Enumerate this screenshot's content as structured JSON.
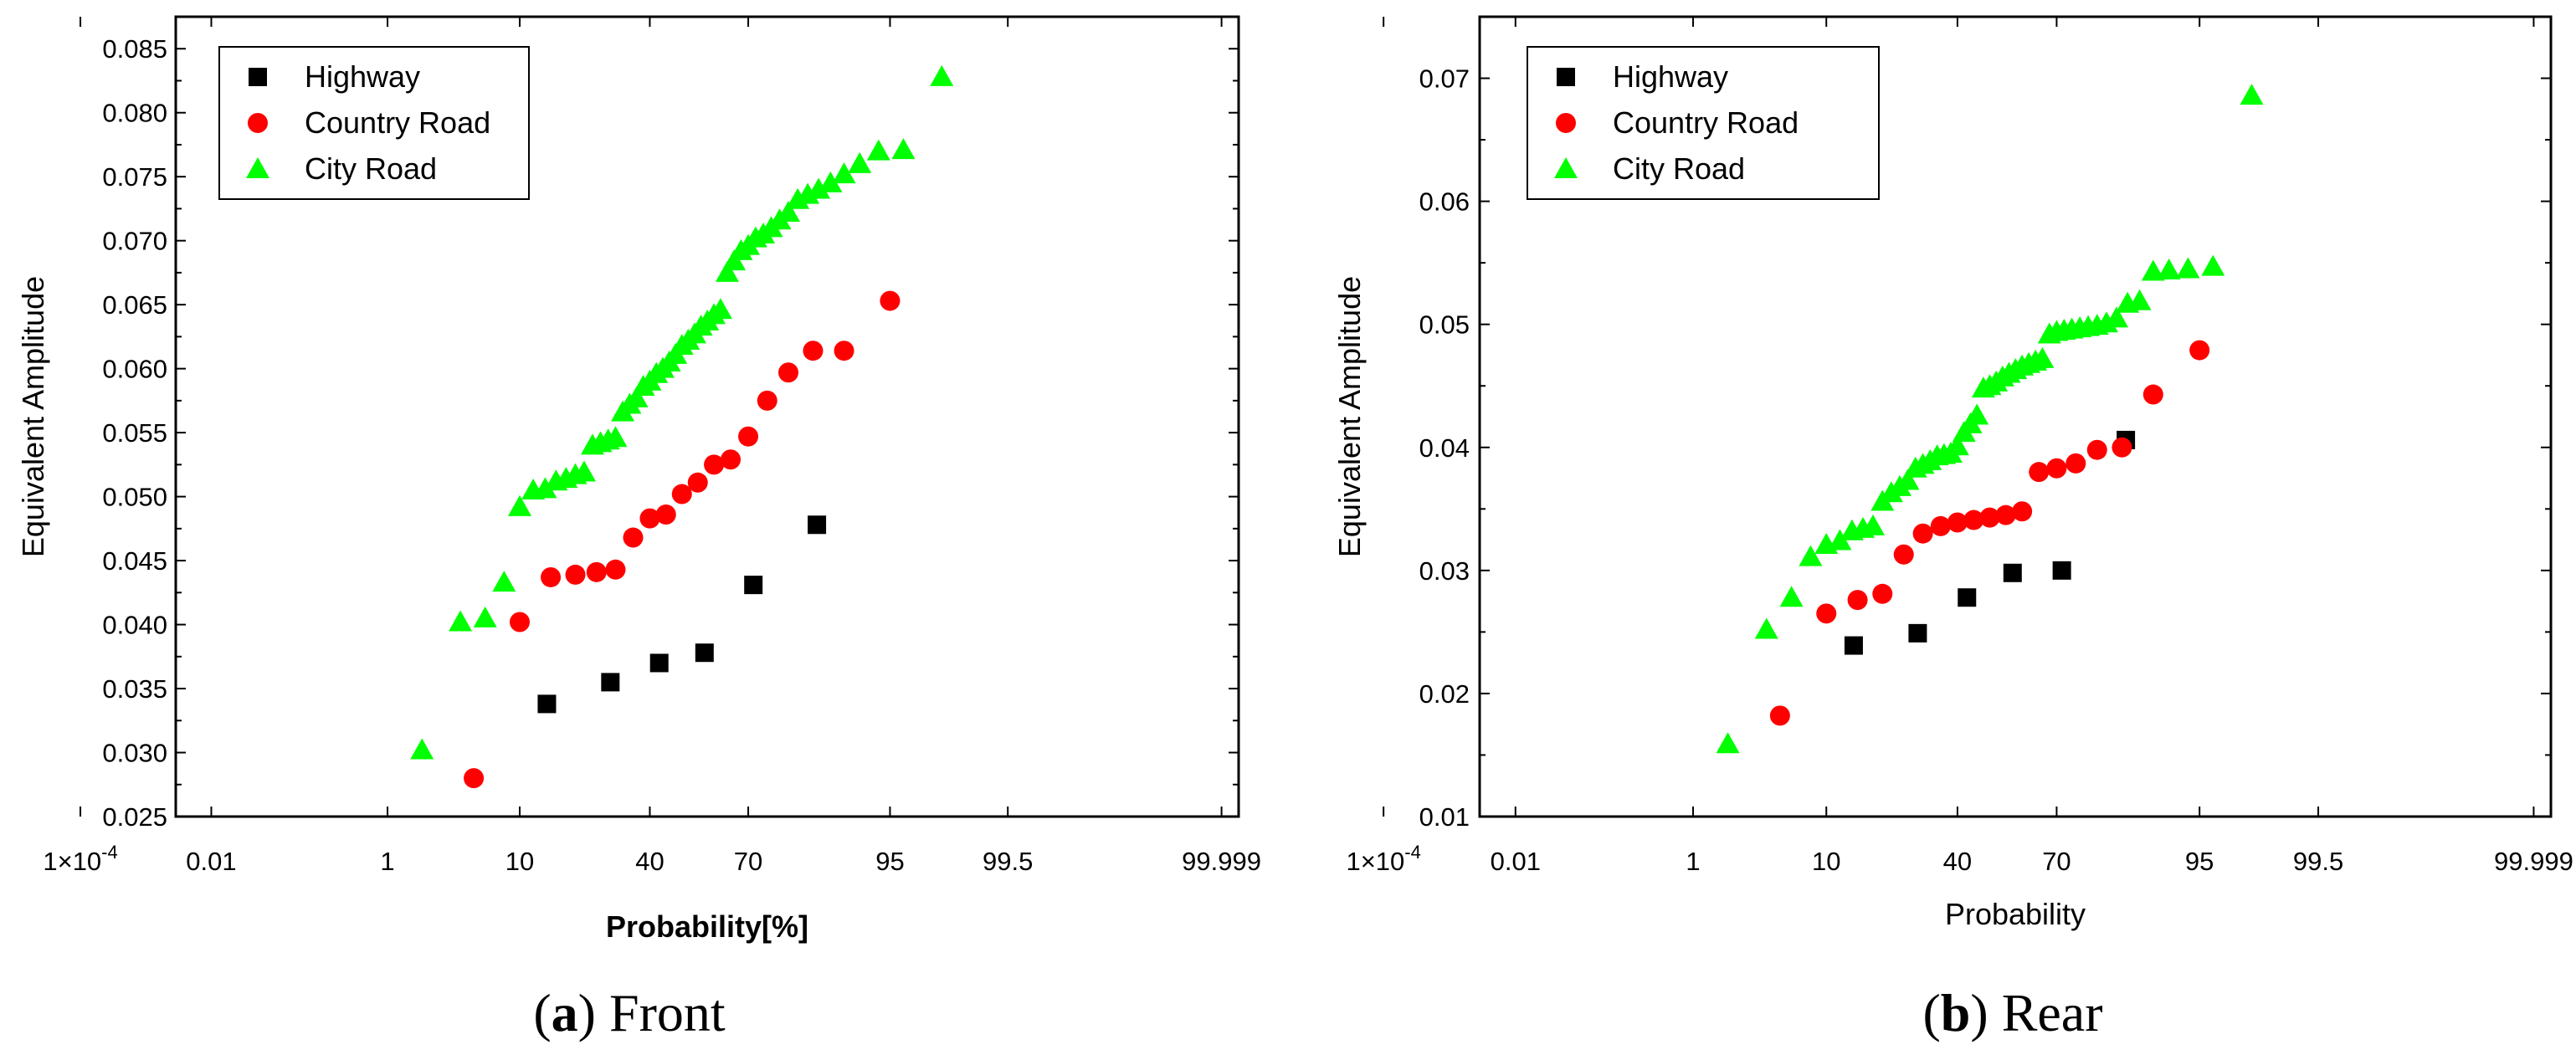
{
  "chart_data": [
    {
      "type": "scatter",
      "id": "front",
      "caption_letter": "a",
      "caption_text": "Front",
      "xlabel": "Probability[%]",
      "ylabel": "Equivalent Amplitude",
      "x_scale": "normal-probability",
      "x_ticks": [
        {
          "value": 0.0001,
          "label": "1×10",
          "sup": "-4"
        },
        {
          "value": 0.01,
          "label": "0.01"
        },
        {
          "value": 1,
          "label": "1"
        },
        {
          "value": 10,
          "label": "10"
        },
        {
          "value": 40,
          "label": "40"
        },
        {
          "value": 70,
          "label": "70"
        },
        {
          "value": 95,
          "label": "95"
        },
        {
          "value": 99.5,
          "label": "99.5"
        },
        {
          "value": 99.999,
          "label": "99.999"
        }
      ],
      "xlim_z": [
        -4.0,
        4.4
      ],
      "ylim": [
        0.025,
        0.0875
      ],
      "y_ticks": [
        "0.025",
        "0.030",
        "0.035",
        "0.040",
        "0.045",
        "0.050",
        "0.055",
        "0.060",
        "0.065",
        "0.070",
        "0.075",
        "0.080",
        "0.085"
      ],
      "series": [
        {
          "name": "Highway",
          "marker": "square",
          "color": "#000000",
          "x": [
            14.3,
            28.6,
            42.9,
            57.1,
            71.4,
            85.7
          ],
          "y": [
            0.0338,
            0.0355,
            0.037,
            0.0378,
            0.0431,
            0.0478
          ]
        },
        {
          "name": "Country Road",
          "marker": "circle",
          "color": "#ff0000",
          "x": [
            5.0,
            10.0,
            15.0,
            20.0,
            25.0,
            30.0,
            35.0,
            40.0,
            45.0,
            50.0,
            55.0,
            60.0,
            65.0,
            70.0,
            75.0,
            80.0,
            85.0,
            90.0,
            95.0
          ],
          "y": [
            0.028,
            0.0402,
            0.0437,
            0.0439,
            0.0441,
            0.0443,
            0.0468,
            0.0483,
            0.0486,
            0.0502,
            0.0511,
            0.0525,
            0.0529,
            0.0547,
            0.0575,
            0.0597,
            0.0614,
            0.0614,
            0.0653
          ]
        },
        {
          "name": "City Road",
          "marker": "triangle",
          "color": "#00ff00",
          "x": [
            2,
            4,
            6,
            8,
            10,
            12,
            14,
            16,
            18,
            20,
            22,
            24,
            26,
            28,
            30,
            32,
            34,
            36,
            38,
            40,
            42,
            44,
            46,
            48,
            50,
            52,
            54,
            56,
            58,
            60,
            62,
            64,
            66,
            68,
            70,
            72,
            74,
            76,
            78,
            80,
            82,
            84,
            86,
            88,
            90,
            92,
            94,
            96,
            98
          ],
          "y": [
            0.0302,
            0.0402,
            0.0405,
            0.0433,
            0.0492,
            0.0505,
            0.0506,
            0.0512,
            0.0514,
            0.0517,
            0.0519,
            0.054,
            0.0542,
            0.0544,
            0.0546,
            0.0566,
            0.0572,
            0.0577,
            0.0586,
            0.059,
            0.0596,
            0.06,
            0.0605,
            0.0611,
            0.0618,
            0.0622,
            0.0627,
            0.0633,
            0.0637,
            0.0642,
            0.0646,
            0.0675,
            0.0684,
            0.0692,
            0.0696,
            0.0702,
            0.0705,
            0.071,
            0.0716,
            0.0722,
            0.0732,
            0.0736,
            0.074,
            0.0745,
            0.0752,
            0.076,
            0.077,
            0.0771,
            0.0828
          ]
        }
      ]
    },
    {
      "type": "scatter",
      "id": "rear",
      "caption_letter": "b",
      "caption_text": "Rear",
      "xlabel": "Probability",
      "ylabel": "Equivalent Amplitude",
      "x_scale": "normal-probability",
      "x_ticks": [
        {
          "value": 0.0001,
          "label": "1×10",
          "sup": "-4"
        },
        {
          "value": 0.01,
          "label": "0.01"
        },
        {
          "value": 1,
          "label": "1"
        },
        {
          "value": 10,
          "label": "10"
        },
        {
          "value": 40,
          "label": "40"
        },
        {
          "value": 70,
          "label": "70"
        },
        {
          "value": 95,
          "label": "95"
        },
        {
          "value": 99.5,
          "label": "99.5"
        },
        {
          "value": 99.999,
          "label": "99.999"
        }
      ],
      "xlim_z": [
        -4.0,
        4.4
      ],
      "ylim": [
        0.01,
        0.075
      ],
      "y_ticks": [
        "0.01",
        "0.02",
        "0.03",
        "0.04",
        "0.05",
        "0.06",
        "0.07"
      ],
      "series": [
        {
          "name": "Highway",
          "marker": "square",
          "color": "#000000",
          "x": [
            14.3,
            28.6,
            42.9,
            57.1,
            71.4,
            85.7
          ],
          "y": [
            0.0239,
            0.0249,
            0.0278,
            0.0298,
            0.03,
            0.0406
          ]
        },
        {
          "name": "Country Road",
          "marker": "circle",
          "color": "#ff0000",
          "x": [
            5.0,
            10.0,
            15.0,
            20.0,
            25.0,
            30.0,
            35.0,
            40.0,
            45.0,
            50.0,
            55.0,
            60.0,
            65.0,
            70.0,
            75.0,
            80.0,
            85.0,
            90.0,
            95.0
          ],
          "y": [
            0.0182,
            0.0265,
            0.0276,
            0.0281,
            0.0313,
            0.033,
            0.0336,
            0.0339,
            0.0341,
            0.0343,
            0.0345,
            0.0348,
            0.038,
            0.0383,
            0.0387,
            0.0398,
            0.04,
            0.0443,
            0.0479
          ]
        },
        {
          "name": "City Road",
          "marker": "triangle",
          "color": "#00ff00",
          "x": [
            2,
            4,
            6,
            8,
            10,
            12,
            14,
            16,
            18,
            20,
            22,
            24,
            26,
            28,
            30,
            32,
            34,
            36,
            38,
            40,
            42,
            44,
            46,
            48,
            50,
            52,
            54,
            56,
            58,
            60,
            62,
            64,
            66,
            68,
            70,
            72,
            74,
            76,
            78,
            80,
            82,
            84,
            86,
            88,
            90,
            92,
            94,
            96,
            98
          ],
          "y": [
            0.0159,
            0.0252,
            0.0278,
            0.0311,
            0.0321,
            0.0324,
            0.0332,
            0.0334,
            0.0336,
            0.0356,
            0.0363,
            0.0368,
            0.0373,
            0.0383,
            0.0386,
            0.0389,
            0.0393,
            0.0394,
            0.0395,
            0.0401,
            0.0412,
            0.0419,
            0.0426,
            0.0448,
            0.045,
            0.0453,
            0.0457,
            0.046,
            0.0463,
            0.0466,
            0.0468,
            0.047,
            0.0472,
            0.0492,
            0.0494,
            0.0495,
            0.0496,
            0.0497,
            0.0498,
            0.0499,
            0.0501,
            0.0505,
            0.0517,
            0.0519,
            0.0543,
            0.0544,
            0.0545,
            0.0547,
            0.0686
          ]
        }
      ]
    }
  ]
}
